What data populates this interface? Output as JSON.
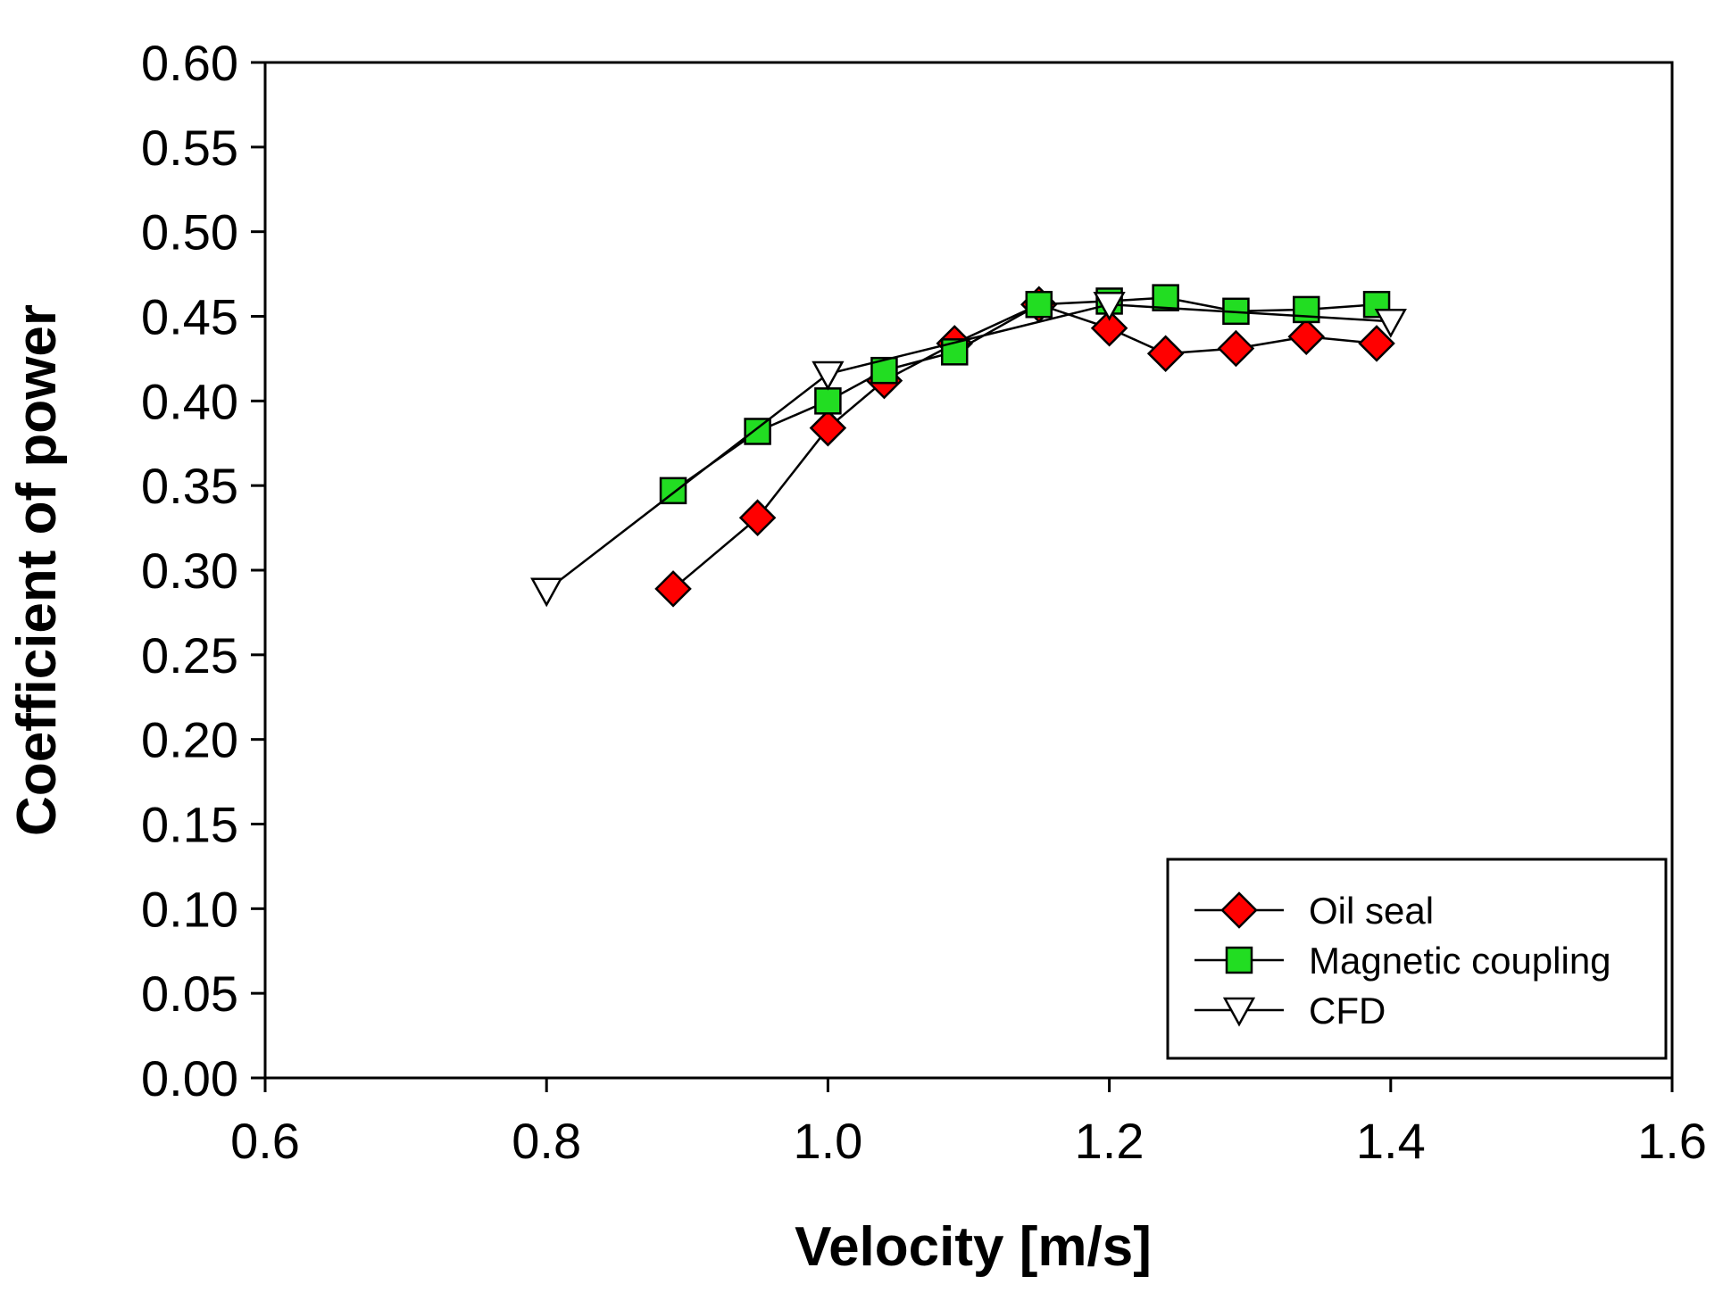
{
  "chart_data": {
    "type": "line",
    "title": "",
    "xlabel": "Velocity [m/s]",
    "ylabel": "Coefficient of power",
    "xlim": [
      0.6,
      1.6
    ],
    "ylim": [
      0.0,
      0.6
    ],
    "x_ticks": [
      0.6,
      0.8,
      1.0,
      1.2,
      1.4,
      1.6
    ],
    "x_tick_labels": [
      "0.6",
      "0.8",
      "1.0",
      "1.2",
      "1.4",
      "1.6"
    ],
    "y_ticks": [
      0.0,
      0.05,
      0.1,
      0.15,
      0.2,
      0.25,
      0.3,
      0.35,
      0.4,
      0.45,
      0.5,
      0.55,
      0.6
    ],
    "y_tick_labels": [
      "0.00",
      "0.05",
      "0.10",
      "0.15",
      "0.20",
      "0.25",
      "0.30",
      "0.35",
      "0.40",
      "0.45",
      "0.50",
      "0.55",
      "0.60"
    ],
    "grid": false,
    "legend_position": "bottom-right",
    "series": [
      {
        "name": "Oil seal",
        "marker": "diamond",
        "color": "#ff0000",
        "x": [
          0.89,
          0.95,
          1.0,
          1.04,
          1.09,
          1.15,
          1.2,
          1.24,
          1.29,
          1.34,
          1.39
        ],
        "y": [
          0.289,
          0.331,
          0.384,
          0.412,
          0.434,
          0.457,
          0.443,
          0.428,
          0.431,
          0.438,
          0.434
        ]
      },
      {
        "name": "Magnetic coupling",
        "marker": "square",
        "color": "#22dd22",
        "x": [
          0.89,
          0.95,
          1.0,
          1.04,
          1.09,
          1.15,
          1.2,
          1.24,
          1.29,
          1.34,
          1.39
        ],
        "y": [
          0.347,
          0.382,
          0.4,
          0.418,
          0.429,
          0.457,
          0.459,
          0.461,
          0.453,
          0.454,
          0.457
        ]
      },
      {
        "name": "CFD",
        "marker": "triangle-down",
        "color": "#ffffff",
        "x": [
          0.8,
          1.0,
          1.2,
          1.4
        ],
        "y": [
          0.288,
          0.416,
          0.457,
          0.447
        ]
      }
    ]
  }
}
